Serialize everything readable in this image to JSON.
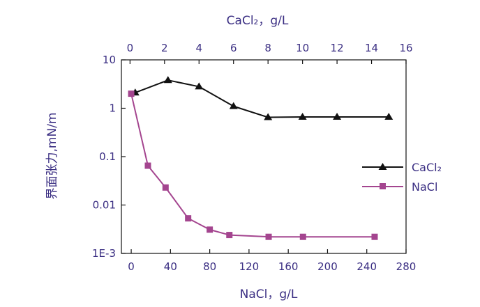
{
  "chart_data": {
    "type": "line",
    "title": "",
    "y_axis": {
      "label": "界面张力,mN/m",
      "scale": "log",
      "range": [
        0.001,
        10
      ],
      "tick_values": [
        0.001,
        0.01,
        0.1,
        1,
        10
      ],
      "tick_labels": [
        "1E-3",
        "0.01",
        "0.1",
        "1",
        "10"
      ]
    },
    "x_axis_bottom": {
      "label": "NaCl，g/L",
      "range": [
        -10,
        280
      ],
      "ticks": [
        0,
        40,
        80,
        120,
        160,
        200,
        240,
        280
      ]
    },
    "x_axis_top": {
      "label": "CaCl₂，g/L",
      "range": [
        -0.5,
        16
      ],
      "ticks": [
        0,
        2,
        4,
        6,
        8,
        10,
        12,
        14,
        16
      ]
    },
    "grid": false,
    "legend": {
      "position": "right"
    },
    "series": [
      {
        "name": "CaCl₂",
        "axis": "top",
        "marker": "triangle",
        "color": "#111111",
        "x": [
          0.3,
          2.2,
          4.0,
          6.0,
          8.0,
          10.0,
          12.0,
          15.0
        ],
        "y": [
          2.1,
          3.8,
          2.8,
          1.1,
          0.65,
          0.66,
          0.66,
          0.66
        ]
      },
      {
        "name": "NaCl",
        "axis": "bottom",
        "marker": "square",
        "color": "#a4458f",
        "x": [
          0,
          17,
          35,
          58,
          80,
          100,
          140,
          175,
          248
        ],
        "y": [
          2.0,
          0.065,
          0.023,
          0.0053,
          0.0031,
          0.0024,
          0.0022,
          0.0022,
          0.0022
        ]
      }
    ]
  }
}
